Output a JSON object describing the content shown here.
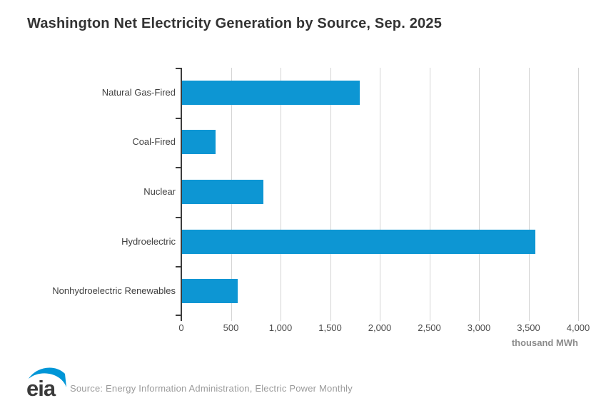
{
  "title": "Washington Net Electricity Generation by Source, Sep. 2025",
  "chart_data": {
    "type": "bar",
    "orientation": "horizontal",
    "title": "Washington Net Electricity Generation by Source, Sep. 2025",
    "categories": [
      "Natural Gas-Fired",
      "Coal-Fired",
      "Nuclear",
      "Hydroelectric",
      "Nonhydroelectric Renewables"
    ],
    "values": [
      1790,
      340,
      820,
      3560,
      560
    ],
    "xlabel": "thousand MWh",
    "ylabel": "",
    "xlim": [
      0,
      4000
    ],
    "xticks": [
      0,
      500,
      1000,
      1500,
      2000,
      2500,
      3000,
      3500,
      4000
    ],
    "xtick_labels": [
      "0",
      "500",
      "1,000",
      "1,500",
      "2,000",
      "2,500",
      "3,000",
      "3,500",
      "4,000"
    ],
    "grid": true,
    "legend": "none",
    "bar_color": "#0d96d3"
  },
  "footer": {
    "logo_text": "eia",
    "source": "Source: Energy Information Administration, Electric Power Monthly"
  },
  "colors": {
    "bar": "#0d96d3",
    "title_text": "#333333",
    "axis": "#3c3c3c",
    "gridline": "#d4d4d4",
    "tick_label": "#4d4d4d",
    "unit_label": "#8c8c8c",
    "source_text": "#9b9b9b",
    "logo_blue": "#0096d7",
    "logo_text": "#3a3a3a"
  }
}
